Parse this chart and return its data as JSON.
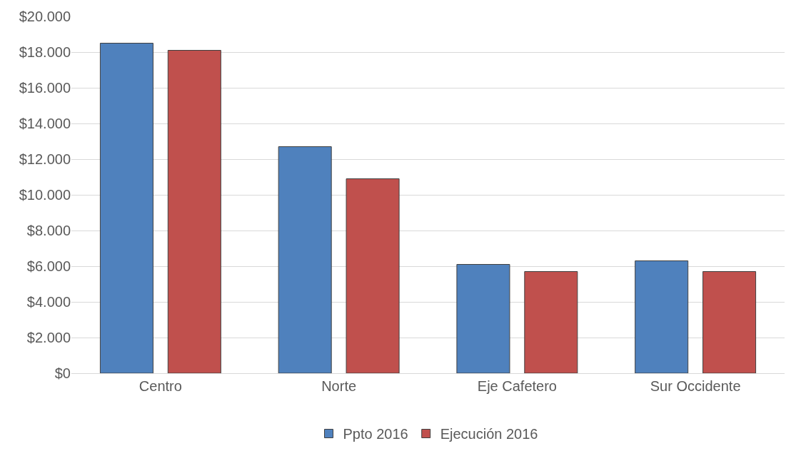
{
  "chart_data": {
    "type": "bar",
    "categories": [
      "Centro",
      "Norte",
      "Eje Cafetero",
      "Sur Occidente"
    ],
    "series": [
      {
        "name": "Ppto 2016",
        "color": "#4f81bd",
        "values": [
          18500,
          12700,
          6100,
          6300
        ]
      },
      {
        "name": "Ejecución 2016",
        "color": "#c0504d",
        "values": [
          18100,
          10900,
          5700,
          5700
        ]
      }
    ],
    "ylim": [
      0,
      20000
    ],
    "yticks": [
      {
        "value": 0,
        "label": "$0"
      },
      {
        "value": 2000,
        "label": "$2.000"
      },
      {
        "value": 4000,
        "label": "$4.000"
      },
      {
        "value": 6000,
        "label": "$6.000"
      },
      {
        "value": 8000,
        "label": "$8.000"
      },
      {
        "value": 10000,
        "label": "$10.000"
      },
      {
        "value": 12000,
        "label": "$12.000"
      },
      {
        "value": 14000,
        "label": "$14.000"
      },
      {
        "value": 16000,
        "label": "$16.000"
      },
      {
        "value": 18000,
        "label": "$18.000"
      },
      {
        "value": 20000,
        "label": "$20.000"
      }
    ],
    "grid": "y",
    "legend": "bottom"
  }
}
